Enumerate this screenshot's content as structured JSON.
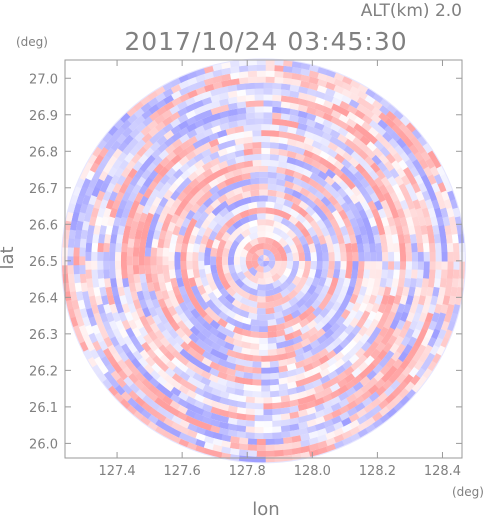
{
  "header": {
    "altitude_label": "ALT(km)  2.0",
    "timestamp": "2017/10/24 03:45:30"
  },
  "colors": {
    "positive": "#ff9a9a",
    "negative": "#9a9aff",
    "neutral": "#ffffff",
    "axis": "#9a9a9a",
    "text": "#808080"
  },
  "chart_data": {
    "type": "heatmap",
    "projection": "polar-scan",
    "xlabel": "lon",
    "ylabel": "lat",
    "x_unit": "(deg)",
    "y_unit": "(deg)",
    "xlim": [
      127.24,
      128.46
    ],
    "ylim": [
      25.96,
      27.05
    ],
    "xticks": [
      "127.4",
      "127.6",
      "127.8",
      "128.0",
      "128.2",
      "128.4"
    ],
    "yticks": [
      "26.0",
      "26.1",
      "26.2",
      "26.3",
      "26.4",
      "26.5",
      "26.6",
      "26.7",
      "26.8",
      "26.9",
      "27.0"
    ],
    "center": {
      "lon": 127.85,
      "lat": 26.5
    },
    "colormap": "blue-white-red diverging"
  }
}
